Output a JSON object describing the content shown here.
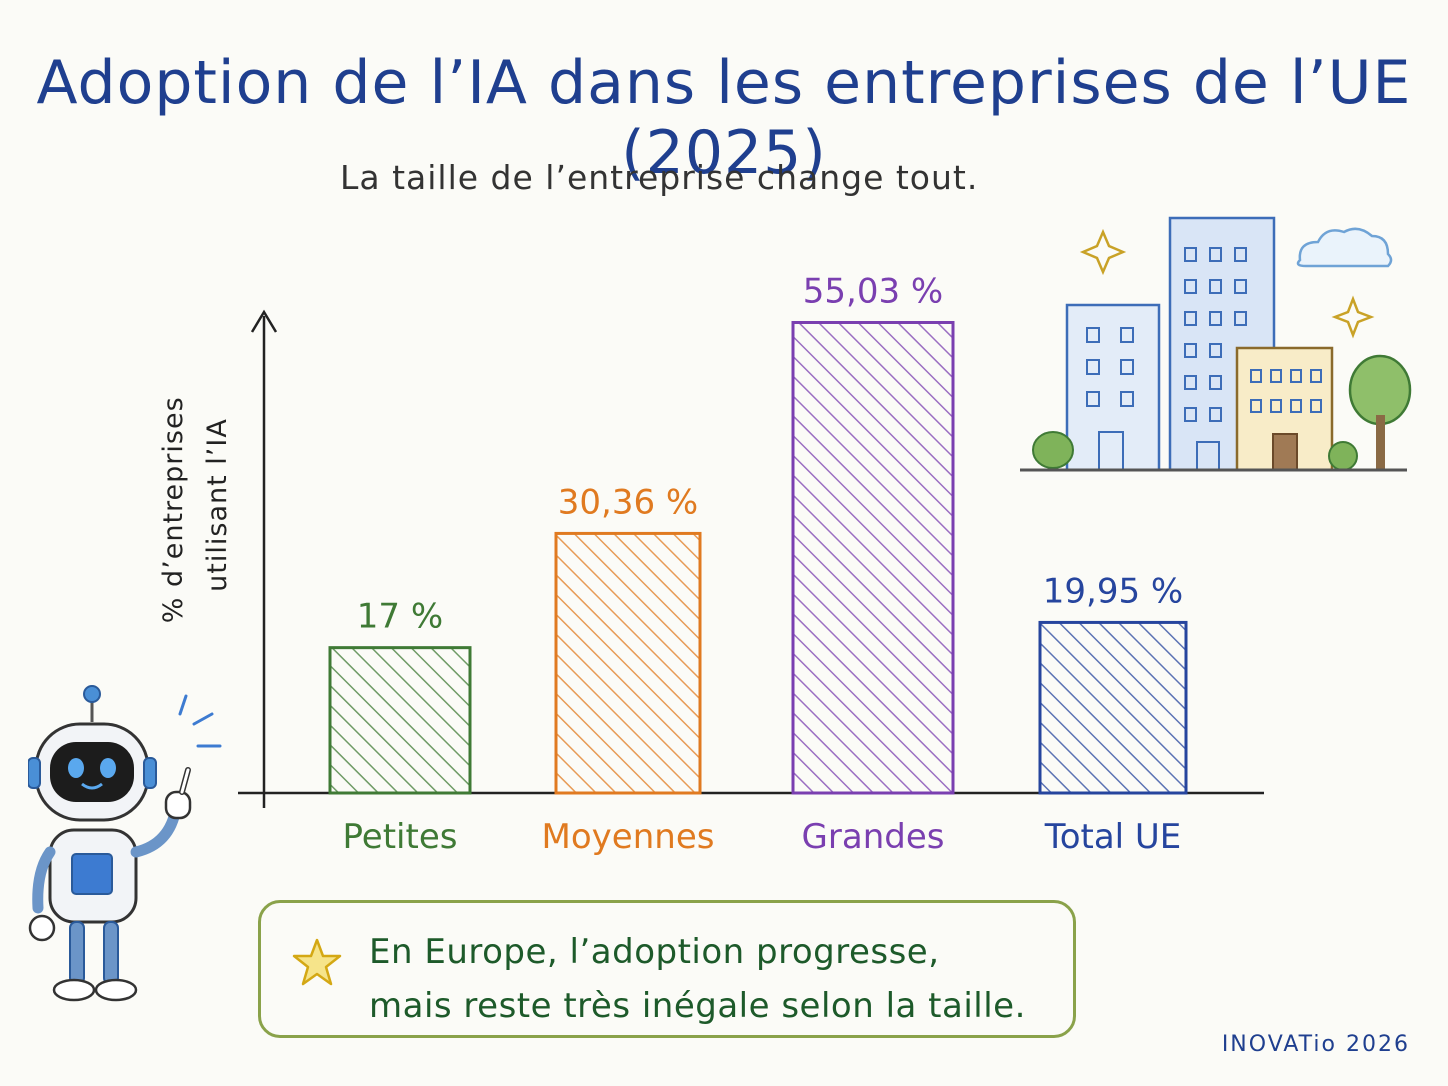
{
  "header": {
    "title": "Adoption de l’IA dans les entreprises de l’UE (2025)",
    "subtitle": "La taille de l’entreprise change tout."
  },
  "chart_data": {
    "type": "bar",
    "title": "Adoption de l’IA dans les entreprises de l’UE (2025)",
    "subtitle": "La taille de l’entreprise change tout.",
    "ylabel_lines": [
      "% d’entreprises",
      "utilisant l’IA"
    ],
    "xlabel": "",
    "ylim": [
      0,
      60
    ],
    "grid": false,
    "categories": [
      "Petites",
      "Moyennes",
      "Grandes",
      "Total UE"
    ],
    "values": [
      17,
      30.36,
      55.03,
      19.95
    ],
    "value_labels": [
      "17 %",
      "30,36 %",
      "55,03 %",
      "19,95 %"
    ],
    "colors": [
      "#3f7a35",
      "#e07a20",
      "#7a3fb0",
      "#26459e"
    ]
  },
  "callout": {
    "line1": "En Europe, l’adoption progresse,",
    "line2": "mais reste très inégale selon la taille."
  },
  "credit": "INOVATio 2026",
  "icons": {
    "mascot": "robot-icon",
    "scene": "city-buildings-icon",
    "callout_icon": "star-icon"
  }
}
